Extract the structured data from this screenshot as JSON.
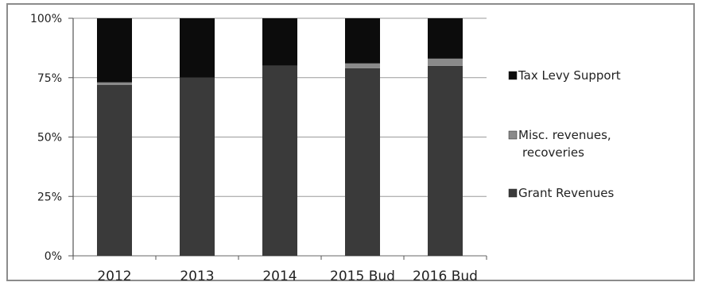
{
  "chart_data": {
    "type": "bar",
    "stacked": true,
    "percent": true,
    "categories": [
      "2012",
      "2013",
      "2014",
      "2015 Bud",
      "2016 Bud"
    ],
    "series": [
      {
        "name": "Grant Revenues",
        "values": [
          72,
          75,
          80,
          79,
          80
        ],
        "color": "#3a3a3a"
      },
      {
        "name": "Misc. revenues, recoveries",
        "values": [
          1,
          0,
          0,
          2,
          3
        ],
        "color": "#8a8a8a"
      },
      {
        "name": "Tax Levy Support",
        "values": [
          27,
          25,
          20,
          19,
          17
        ],
        "color": "#0c0c0c"
      }
    ],
    "yticks": [
      "0%",
      "25%",
      "50%",
      "75%",
      "100%"
    ],
    "ylim": [
      0,
      100
    ],
    "grid": true,
    "legend_position": "right",
    "legend_order": [
      "Tax Levy Support",
      "Misc. revenues, recoveries",
      "Grant Revenues"
    ],
    "legend_lines": {
      "Tax Levy Support": [
        "Tax Levy Support"
      ],
      "Misc. revenues, recoveries": [
        "Misc. revenues,",
        "recoveries"
      ],
      "Grant Revenues": [
        "Grant Revenues"
      ]
    }
  }
}
